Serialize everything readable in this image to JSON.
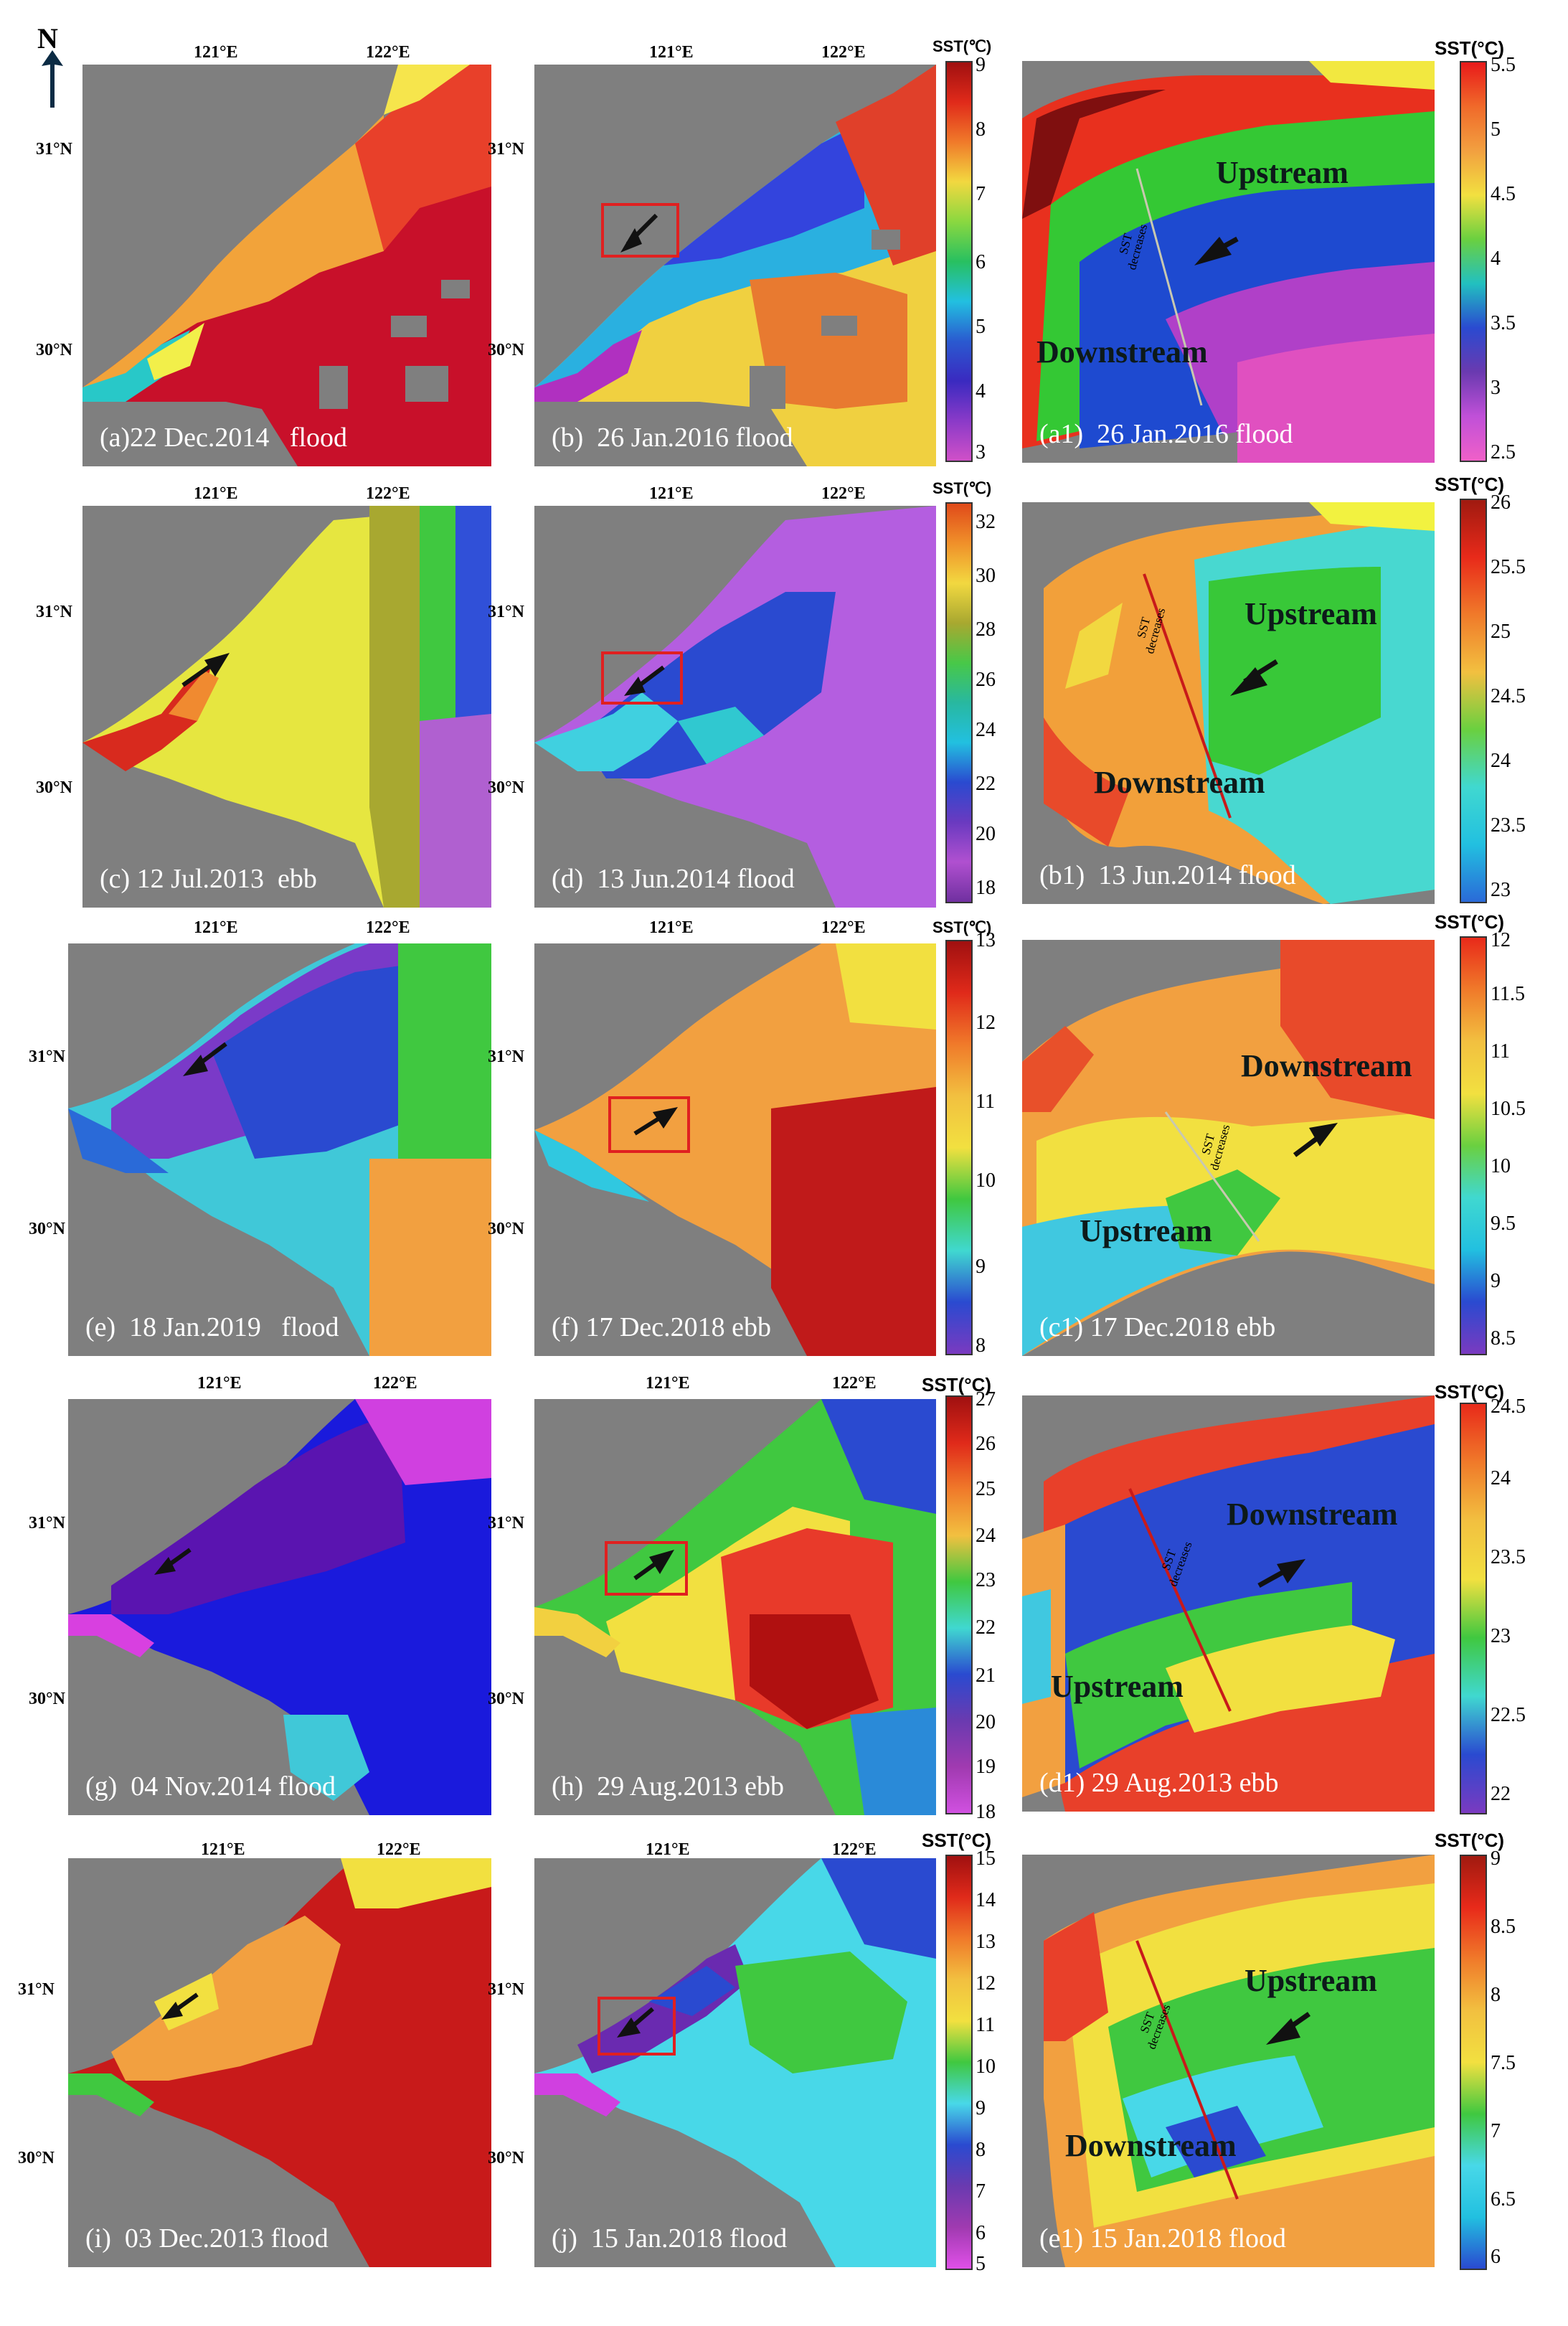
{
  "north_label": "N",
  "colors": {
    "land": "#7f7f7f",
    "arrow": "#111111",
    "box": "#e02020"
  },
  "lat_labels": {
    "n31": "31°N",
    "n30": "30°N"
  },
  "lon_labels": {
    "e121": "121°E",
    "e122": "122°E"
  },
  "rows": [
    {
      "left_caption": "(a)22 Dec.2014   flood",
      "mid_caption": "(b)  26 Jan.2016 flood",
      "zoom_caption": "(a1)  26 Jan.2016 flood",
      "mid_cbar": {
        "title": "SST(℃)",
        "ticks": [
          "9",
          "8",
          "7",
          "6",
          "5",
          "4",
          "3"
        ]
      },
      "zoom_cbar": {
        "title": "SST(°C)",
        "ticks": [
          "5.5",
          "5",
          "4.5",
          "4",
          "3.5",
          "3",
          "2.5"
        ]
      },
      "zoom_labels": {
        "a": "Upstream",
        "b": "Downstream"
      },
      "sst_note": "SST\ndecreases"
    },
    {
      "left_caption": "(c) 12 Jul.2013  ebb",
      "mid_caption": "(d)  13 Jun.2014 flood",
      "zoom_caption": "(b1)  13 Jun.2014 flood",
      "mid_cbar": {
        "title": "SST(℃)",
        "ticks": [
          "32",
          "30",
          "28",
          "26",
          "24",
          "22",
          "20",
          "18"
        ]
      },
      "zoom_cbar": {
        "title": "SST(°C)",
        "ticks": [
          "26",
          "25.5",
          "25",
          "24.5",
          "24",
          "23.5",
          "23"
        ]
      },
      "zoom_labels": {
        "a": "Upstream",
        "b": "Downstream"
      },
      "sst_note": "SST\ndecreases"
    },
    {
      "left_caption": "(e)  18 Jan.2019   flood",
      "mid_caption": "(f) 17 Dec.2018 ebb",
      "zoom_caption": "(c1) 17 Dec.2018 ebb",
      "mid_cbar": {
        "title": "SST(℃)",
        "ticks": [
          "13",
          "12",
          "11",
          "10",
          "9",
          "8"
        ]
      },
      "zoom_cbar": {
        "title": "SST(°C)",
        "ticks": [
          "12",
          "11.5",
          "11",
          "10.5",
          "10",
          "9.5",
          "9",
          "8.5"
        ]
      },
      "zoom_labels": {
        "a": "Downstream",
        "b": "Upstream"
      },
      "sst_note": "SST\ndecreases"
    },
    {
      "left_caption": "(g)  04 Nov.2014 flood",
      "mid_caption": "(h)  29 Aug.2013 ebb",
      "zoom_caption": "(d1) 29 Aug.2013 ebb",
      "mid_cbar": {
        "title": "SST(°C)",
        "ticks": [
          "27",
          "26",
          "25",
          "24",
          "23",
          "22",
          "21",
          "20",
          "19",
          "18"
        ]
      },
      "zoom_cbar": {
        "title": "SST(°C)",
        "ticks": [
          "24.5",
          "24",
          "23.5",
          "23",
          "22.5",
          "22"
        ]
      },
      "zoom_labels": {
        "a": "Downstream",
        "b": "Upstream"
      },
      "sst_note": "SST\ndecreases"
    },
    {
      "left_caption": "(i)  03 Dec.2013 flood",
      "mid_caption": "(j)  15 Jan.2018 flood",
      "zoom_caption": "(e1) 15 Jan.2018 flood",
      "mid_cbar": {
        "title": "SST(°C)",
        "ticks": [
          "15",
          "14",
          "13",
          "12",
          "11",
          "10",
          "9",
          "8",
          "7",
          "6",
          "5"
        ]
      },
      "zoom_cbar": {
        "title": "SST(°C)",
        "ticks": [
          "9",
          "8.5",
          "8",
          "7.5",
          "7",
          "6.5",
          "6"
        ]
      },
      "zoom_labels": {
        "a": "Upstream",
        "b": "Downstream"
      },
      "sst_note": "SST\ndecreases"
    }
  ]
}
